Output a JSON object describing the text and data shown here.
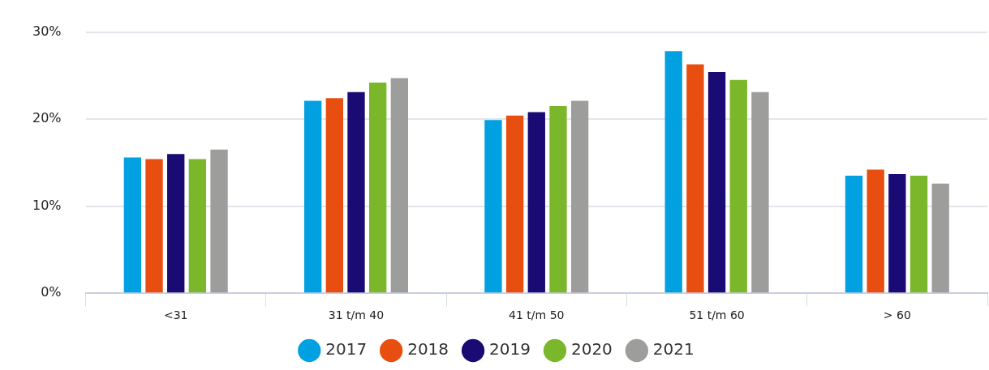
{
  "chart_data": {
    "type": "bar",
    "categories": [
      "<31",
      "31 t/m 40",
      "41 t/m 50",
      "51 t/m 60",
      "> 60"
    ],
    "series": [
      {
        "name": "2017",
        "color": "#00a0e1",
        "values": [
          15.6,
          22.1,
          19.9,
          27.8,
          13.5
        ]
      },
      {
        "name": "2018",
        "color": "#e84e0f",
        "values": [
          15.4,
          22.4,
          20.4,
          26.3,
          14.2
        ]
      },
      {
        "name": "2019",
        "color": "#1a0a73",
        "values": [
          16.0,
          23.1,
          20.8,
          25.4,
          13.7
        ]
      },
      {
        "name": "2020",
        "color": "#7ab72a",
        "values": [
          15.4,
          24.2,
          21.5,
          24.5,
          13.5
        ]
      },
      {
        "name": "2021",
        "color": "#9d9d9c",
        "values": [
          16.5,
          24.7,
          22.1,
          23.1,
          12.6
        ]
      }
    ],
    "ylim": [
      0,
      30
    ],
    "yticks": [
      {
        "value": 0,
        "label": "0%"
      },
      {
        "value": 10,
        "label": "10%"
      },
      {
        "value": 20,
        "label": "20%"
      },
      {
        "value": 30,
        "label": "30%"
      }
    ],
    "grid": "y",
    "legend": "bottom"
  }
}
